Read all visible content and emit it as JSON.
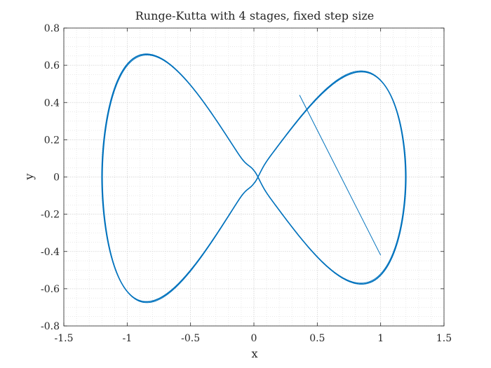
{
  "chart_data": {
    "type": "line",
    "title": "Runge-Kutta with 4 stages, fixed step size",
    "xlabel": "x",
    "ylabel": "y",
    "xlim": [
      -1.5,
      1.5
    ],
    "ylim": [
      -0.8,
      0.8
    ],
    "xticks": [
      -1.5,
      -1,
      -0.5,
      0,
      0.5,
      1,
      1.5
    ],
    "xtick_labels": [
      "-1.5",
      "-1",
      "-0.5",
      "0",
      "0.5",
      "1",
      "1.5"
    ],
    "yticks": [
      -0.8,
      -0.6,
      -0.4,
      -0.2,
      0,
      0.2,
      0.4,
      0.6,
      0.8
    ],
    "ytick_labels": [
      "-0.8",
      "-0.6",
      "-0.4",
      "-0.2",
      "0",
      "0.2",
      "0.4",
      "0.6",
      "0.8"
    ],
    "grid": true,
    "minor_grid": true,
    "box": true,
    "series": [
      {
        "color": "#0072BD",
        "loops": [
          {
            "x_max": 1.2,
            "y_upper": 0.66,
            "y_right_lobe": 0.575,
            "y_lower": -0.67,
            "y_right_lower": -0.565
          },
          {
            "x_max": 1.195,
            "y_upper": 0.655,
            "y_right_lobe": 0.57,
            "y_lower": -0.675,
            "y_right_lower": -0.57
          }
        ],
        "stray_segment": {
          "x": [
            0.36,
            1.0
          ],
          "y": [
            0.44,
            -0.42
          ]
        }
      }
    ]
  }
}
